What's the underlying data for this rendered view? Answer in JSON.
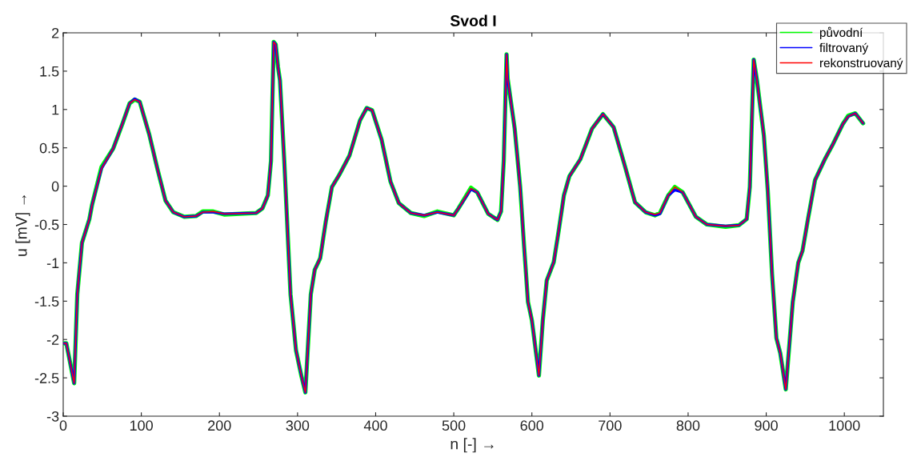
{
  "chart_data": {
    "type": "line",
    "title": "Svod I",
    "xlabel": "n [-] →",
    "ylabel": "u [mV] →",
    "x": [
      1,
      4,
      14,
      18,
      24,
      33.5,
      37,
      49,
      64,
      76,
      85,
      91.5,
      98,
      110,
      120.5,
      131,
      141,
      155,
      170,
      178.6,
      192,
      206,
      247,
      255,
      262,
      266,
      269.5,
      272,
      275,
      277.5,
      283,
      291,
      298,
      305,
      310,
      317,
      322,
      329,
      336,
      344,
      353,
      366.5,
      380,
      388.6,
      395.5,
      407.5,
      419,
      429.6,
      445,
      462,
      479,
      500,
      506,
      522,
      530,
      544,
      556,
      560.5,
      564,
      567.6,
      569,
      578,
      585,
      590,
      595,
      600,
      609,
      614,
      619,
      628,
      634.5,
      641,
      648,
      662,
      677,
      691,
      704.6,
      718,
      732,
      745.6,
      757.5,
      764,
      774.6,
      783,
      793,
      810,
      824,
      848,
      865,
      875,
      879,
      884,
      888,
      897,
      902,
      907.5,
      913,
      918,
      925,
      934,
      941,
      946.5,
      953.6,
      962.5,
      975,
      985.5,
      998,
      1005,
      1014,
      1024
    ],
    "series": [
      {
        "name": "původní",
        "color": "#00ff00",
        "values": [
          -2.05,
          -2.05,
          -2.57,
          -1.41,
          -0.74,
          -0.43,
          -0.24,
          0.25,
          0.49,
          0.82,
          1.08,
          1.13,
          1.1,
          0.68,
          0.23,
          -0.19,
          -0.34,
          -0.4,
          -0.39,
          -0.33,
          -0.33,
          -0.37,
          -0.35,
          -0.29,
          -0.12,
          0.33,
          1.88,
          1.85,
          1.55,
          1.38,
          0.33,
          -1.41,
          -2.14,
          -2.48,
          -2.69,
          -1.41,
          -1.09,
          -0.94,
          -0.47,
          -0.01,
          0.14,
          0.4,
          0.86,
          1.02,
          0.99,
          0.61,
          0.06,
          -0.22,
          -0.35,
          -0.39,
          -0.33,
          -0.38,
          -0.29,
          -0.02,
          -0.08,
          -0.36,
          -0.44,
          -0.33,
          0.33,
          1.72,
          1.4,
          0.75,
          -0.01,
          -0.78,
          -1.51,
          -1.75,
          -2.47,
          -1.75,
          -1.23,
          -0.99,
          -0.57,
          -0.12,
          0.13,
          0.35,
          0.75,
          0.94,
          0.77,
          0.3,
          -0.21,
          -0.34,
          -0.38,
          -0.35,
          -0.12,
          -0.01,
          -0.08,
          -0.4,
          -0.5,
          -0.53,
          -0.51,
          -0.43,
          -0.01,
          1.65,
          1.39,
          0.66,
          -0.06,
          -1.15,
          -1.98,
          -2.18,
          -2.65,
          -1.51,
          -1.0,
          -0.84,
          -0.42,
          0.08,
          0.35,
          0.55,
          0.81,
          0.92,
          0.95,
          0.82
        ]
      },
      {
        "name": "filtrovaný",
        "color": "#0000ff",
        "values": [
          -2.05,
          -2.05,
          -2.57,
          -1.41,
          -0.74,
          -0.43,
          -0.24,
          0.23,
          0.49,
          0.82,
          1.08,
          1.14,
          1.1,
          0.68,
          0.23,
          -0.19,
          -0.34,
          -0.4,
          -0.39,
          -0.34,
          -0.34,
          -0.36,
          -0.35,
          -0.29,
          -0.12,
          0.33,
          1.88,
          1.85,
          1.55,
          1.38,
          0.33,
          -1.41,
          -2.14,
          -2.48,
          -2.69,
          -1.41,
          -1.09,
          -0.94,
          -0.47,
          -0.01,
          0.14,
          0.4,
          0.86,
          1.02,
          0.99,
          0.61,
          0.06,
          -0.22,
          -0.35,
          -0.38,
          -0.34,
          -0.38,
          -0.29,
          -0.04,
          -0.08,
          -0.36,
          -0.44,
          -0.33,
          0.33,
          1.72,
          1.4,
          0.75,
          -0.01,
          -0.78,
          -1.51,
          -1.75,
          -2.47,
          -1.75,
          -1.23,
          -0.99,
          -0.57,
          -0.12,
          0.13,
          0.35,
          0.75,
          0.94,
          0.77,
          0.3,
          -0.21,
          -0.34,
          -0.38,
          -0.36,
          -0.12,
          -0.05,
          -0.08,
          -0.4,
          -0.5,
          -0.52,
          -0.51,
          -0.43,
          -0.01,
          1.65,
          1.39,
          0.66,
          -0.06,
          -1.15,
          -1.98,
          -2.18,
          -2.65,
          -1.51,
          -1.0,
          -0.84,
          -0.42,
          0.08,
          0.35,
          0.55,
          0.81,
          0.91,
          0.95,
          0.82
        ]
      },
      {
        "name": "rekonstruovaný",
        "color": "#ff0000",
        "values": [
          -2.05,
          -2.05,
          -2.57,
          -1.41,
          -0.74,
          -0.43,
          -0.24,
          0.23,
          0.49,
          0.82,
          1.08,
          1.13,
          1.1,
          0.68,
          0.23,
          -0.19,
          -0.34,
          -0.4,
          -0.39,
          -0.34,
          -0.33,
          -0.36,
          -0.35,
          -0.29,
          -0.12,
          0.33,
          1.88,
          1.85,
          1.55,
          1.38,
          0.33,
          -1.41,
          -2.14,
          -2.48,
          -2.69,
          -1.41,
          -1.09,
          -0.94,
          -0.47,
          -0.01,
          0.14,
          0.4,
          0.86,
          1.02,
          0.99,
          0.61,
          0.06,
          -0.22,
          -0.35,
          -0.38,
          -0.34,
          -0.38,
          -0.29,
          -0.03,
          -0.08,
          -0.36,
          -0.44,
          -0.33,
          0.33,
          1.72,
          1.4,
          0.75,
          -0.01,
          -0.78,
          -1.51,
          -1.75,
          -2.47,
          -1.75,
          -1.23,
          -0.99,
          -0.57,
          -0.12,
          0.13,
          0.35,
          0.75,
          0.94,
          0.77,
          0.3,
          -0.21,
          -0.34,
          -0.37,
          -0.35,
          -0.12,
          -0.01,
          -0.08,
          -0.4,
          -0.5,
          -0.52,
          -0.51,
          -0.43,
          -0.01,
          1.65,
          1.39,
          0.66,
          -0.06,
          -1.15,
          -1.98,
          -2.18,
          -2.65,
          -1.51,
          -1.0,
          -0.84,
          -0.42,
          0.08,
          0.35,
          0.55,
          0.81,
          0.91,
          0.95,
          0.82
        ]
      }
    ],
    "xlim": [
      0,
      1050
    ],
    "xticks": [
      0,
      100,
      200,
      300,
      400,
      500,
      600,
      700,
      800,
      900,
      1000
    ],
    "ylim": [
      -3,
      2
    ],
    "yticks": [
      -3,
      -2.5,
      -2,
      -1.5,
      -1,
      -0.5,
      0,
      0.5,
      1,
      1.5,
      2
    ],
    "grid": false,
    "legend": "top right",
    "line_style": "solid"
  }
}
